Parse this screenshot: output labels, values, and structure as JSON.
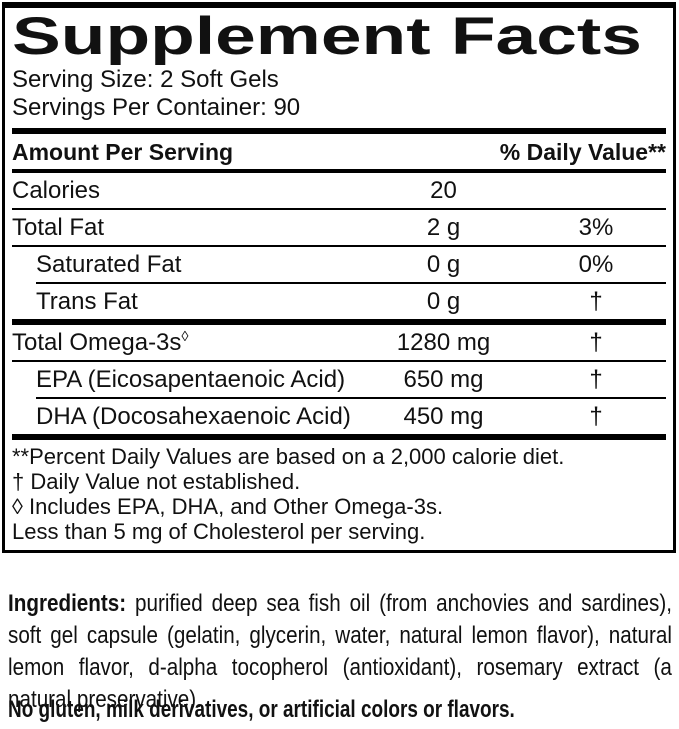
{
  "supplement_facts": {
    "title": "Supplement Facts",
    "serving_size": "Serving Size: 2 Soft Gels",
    "servings_per_container": "Servings Per Container: 90",
    "columns": {
      "amount_header": "Amount Per Serving",
      "dv_header": "% Daily Value**"
    },
    "rows": [
      {
        "name": "Calories",
        "amount": "20",
        "dv": "",
        "indent": false,
        "group_start": false
      },
      {
        "name": "Total Fat",
        "amount": "2 g",
        "dv": "3%",
        "indent": false,
        "group_start": false
      },
      {
        "name": "Saturated Fat",
        "amount": "0 g",
        "dv": "0%",
        "indent": true,
        "group_start": false
      },
      {
        "name": "Trans Fat",
        "amount": "0 g",
        "dv": "†",
        "indent": true,
        "group_start": false
      },
      {
        "name": "Total Omega-3s",
        "name_sup": "◊",
        "amount": "1280 mg",
        "dv": "†",
        "indent": false,
        "group_start": true
      },
      {
        "name": "EPA (Eicosapentaenoic Acid)",
        "amount": "650 mg",
        "dv": "†",
        "indent": true,
        "group_start": false
      },
      {
        "name": "DHA (Docosahexaenoic Acid)",
        "amount": "450 mg",
        "dv": "†",
        "indent": true,
        "group_start": false
      }
    ],
    "footnotes": [
      "**Percent Daily Values are based on a 2,000 calorie diet.",
      "† Daily Value not established.",
      "◊ Includes EPA, DHA, and Other Omega-3s.",
      "Less than 5 mg of Cholesterol per serving."
    ]
  },
  "ingredients": {
    "label": "Ingredients:",
    "text": "purified deep sea fish oil (from anchovies and sardines), soft gel capsule (gelatin, glycerin, water, natural lemon flavor), natural lemon flavor, d-alpha tocopherol (antioxidant), rosemary extract (a natural preservative)."
  },
  "allergen_statement": "No gluten, milk derivatives, or artificial colors or flavors.",
  "colors": {
    "text": "#111111",
    "rule": "#000000",
    "background": "#ffffff"
  }
}
